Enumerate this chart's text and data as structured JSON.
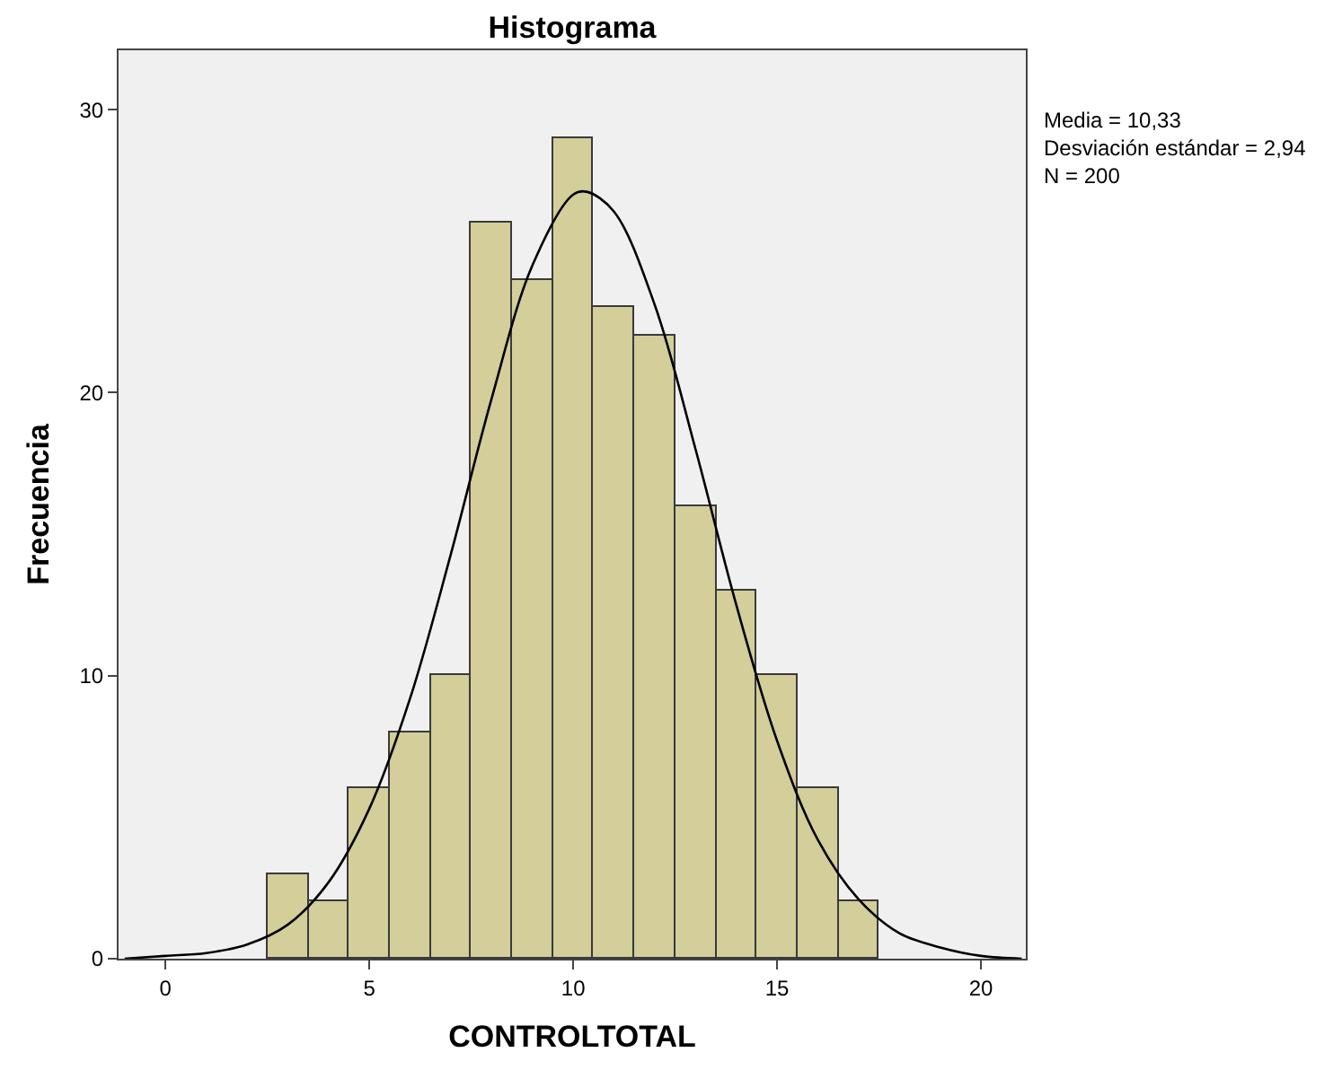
{
  "chart_data": {
    "type": "histogram",
    "title": "Histograma",
    "xlabel": "CONTROLTOTAL",
    "ylabel": "Frecuencia",
    "bins": [
      2.5,
      3.5,
      4.5,
      5.5,
      6.5,
      7.5,
      8.5,
      9.5,
      10.5,
      11.5,
      12.5,
      13.5,
      14.5,
      15.5,
      16.5,
      17.5
    ],
    "values": [
      3,
      2,
      6,
      8,
      10,
      26,
      24,
      29,
      23,
      22,
      16,
      13,
      10,
      6,
      2
    ],
    "color": "#d3ce9a",
    "series": [
      {
        "type": "line",
        "color": "#000000",
        "x": [
          -1,
          0,
          1,
          2,
          3,
          4,
          5,
          6,
          7,
          8,
          9,
          10,
          10.33,
          11,
          12,
          13,
          14,
          15,
          16,
          17,
          18,
          19,
          20,
          21
        ],
        "values": [
          0,
          0.1,
          0.2,
          0.5,
          1.2,
          2.7,
          5.3,
          9.2,
          14.3,
          19.8,
          24.5,
          27,
          27.1,
          26.4,
          23.1,
          18,
          12.5,
          7.7,
          4.2,
          2.1,
          0.9,
          0.4,
          0.1,
          0
        ]
      }
    ],
    "xlim": [
      -1.15,
      21.1
    ],
    "xticks": [
      0,
      5,
      10,
      15,
      20
    ],
    "ylim": [
      0,
      32.1
    ],
    "yticks": [
      0,
      10,
      20,
      30
    ],
    "annotations": [
      "Media = 10,33\nDesviación estándar = 2,94\nN = 200"
    ],
    "grid": false
  }
}
